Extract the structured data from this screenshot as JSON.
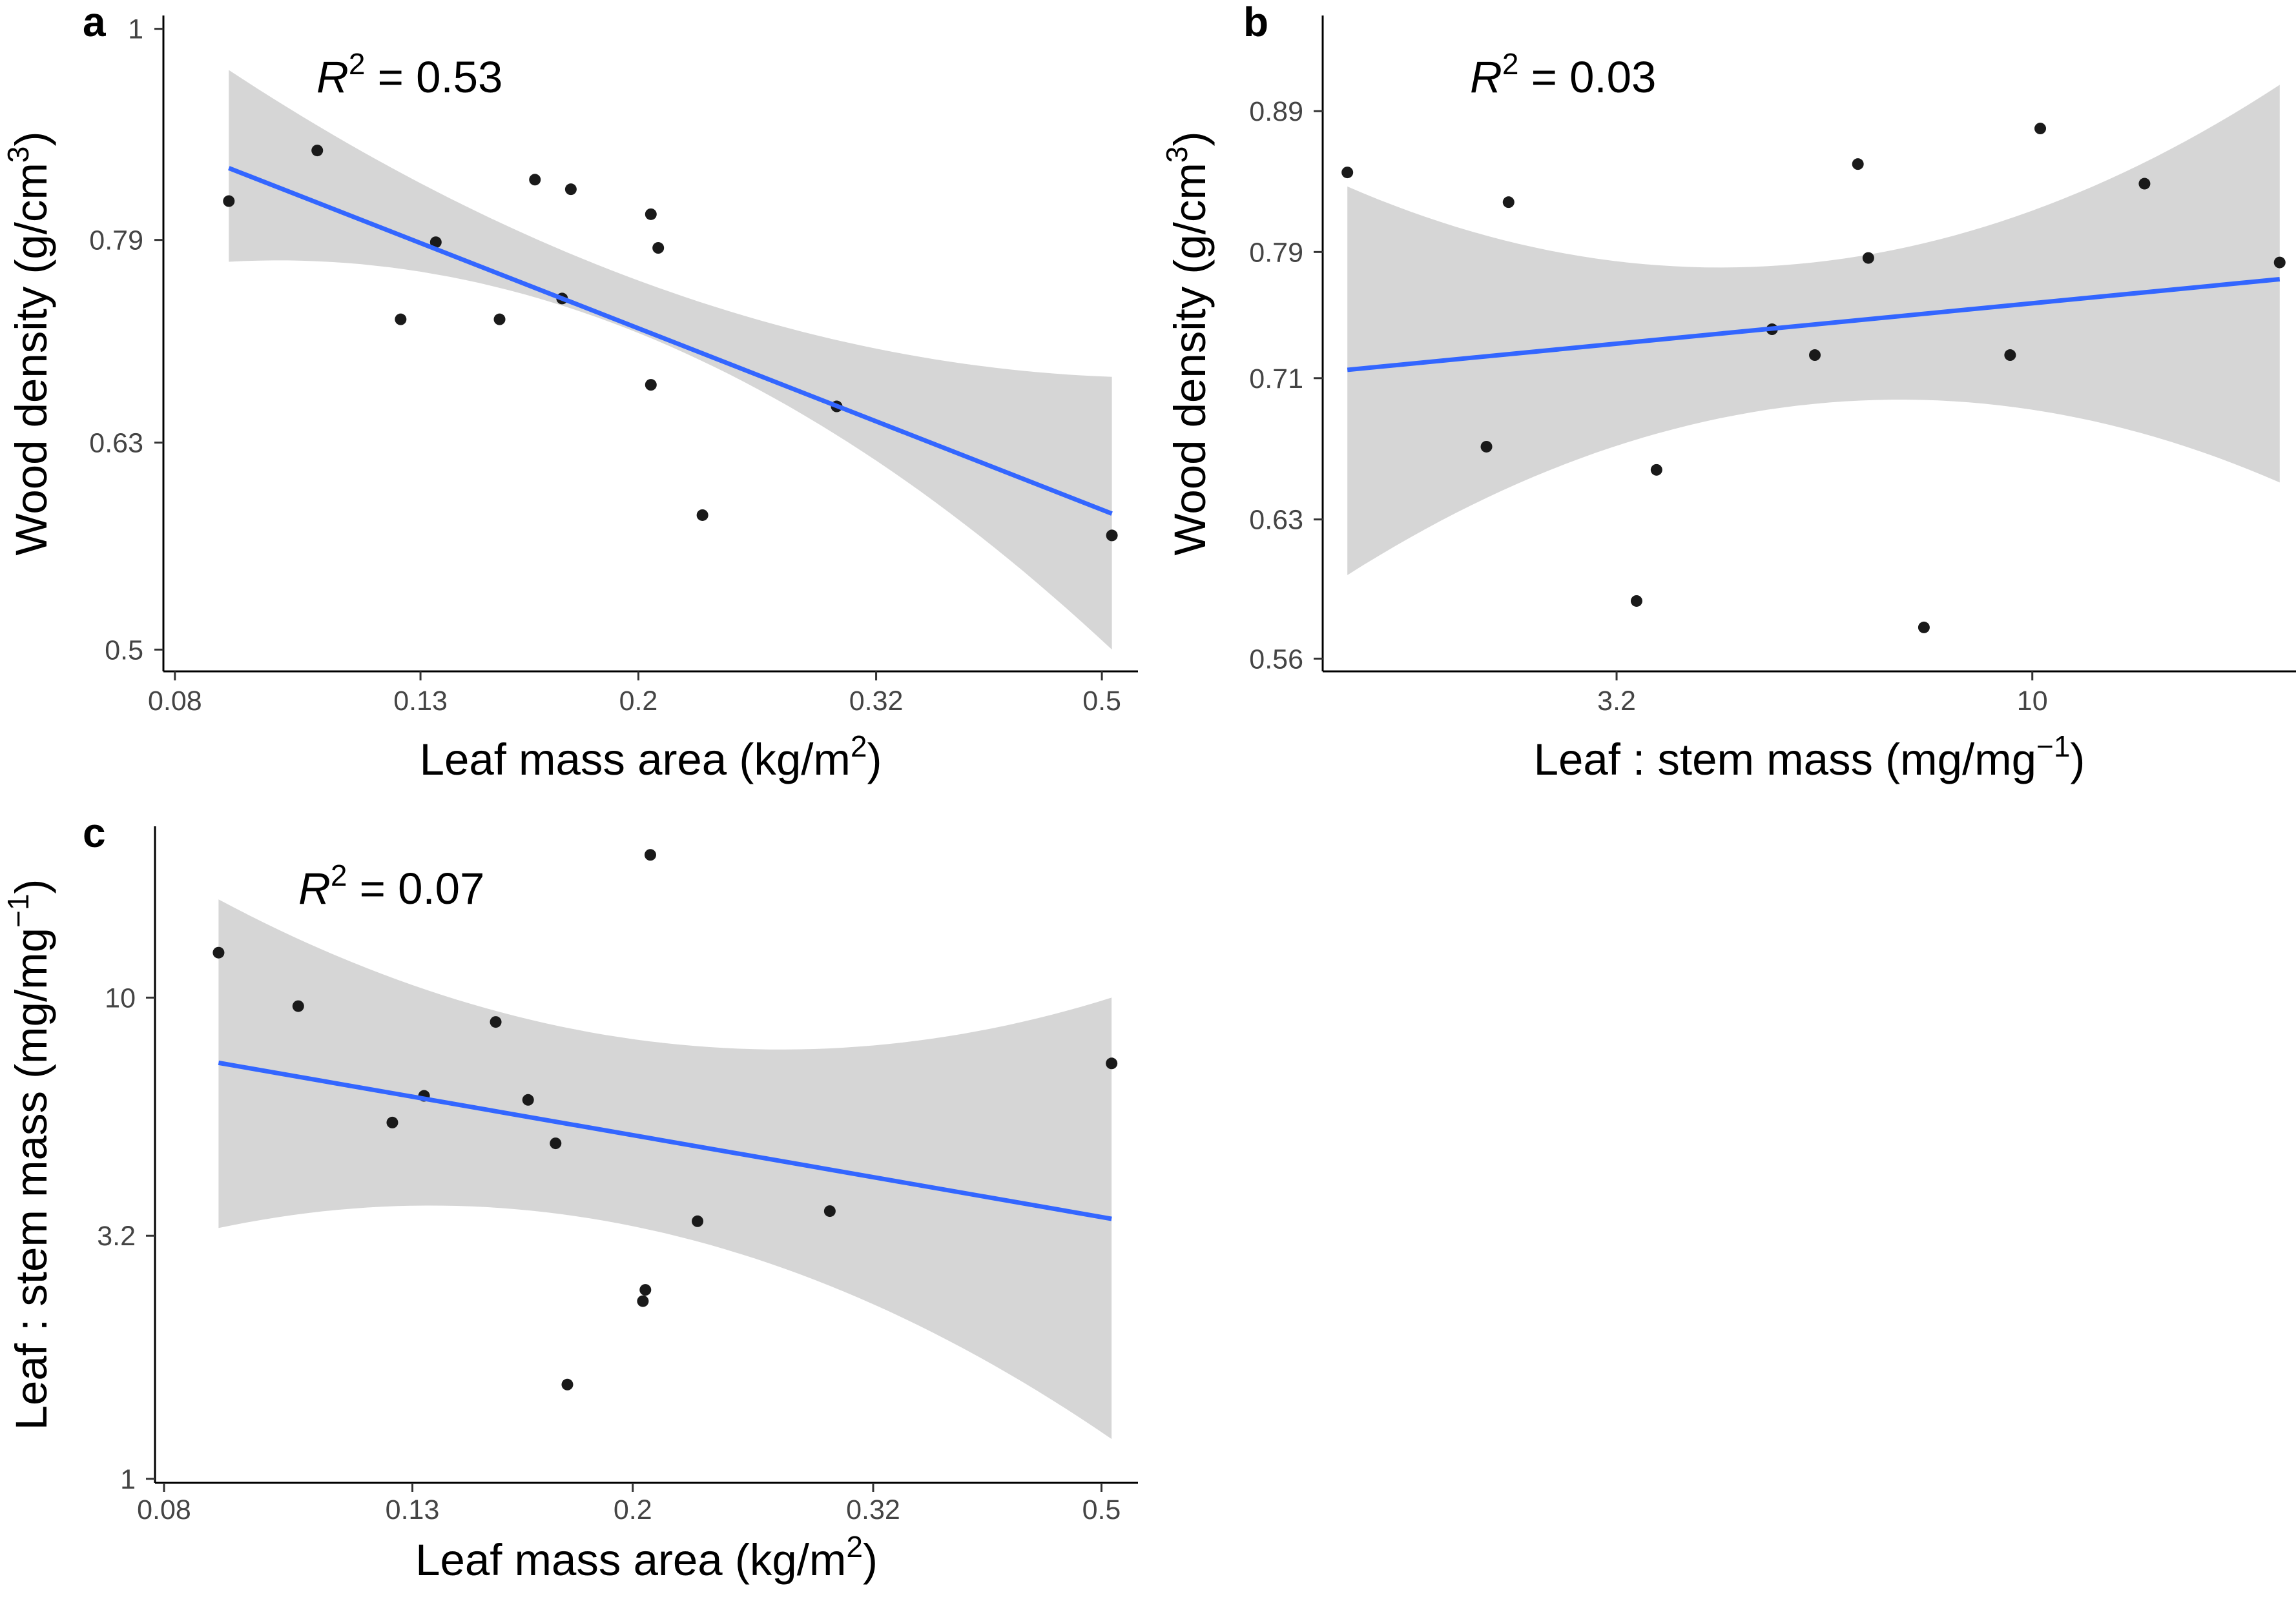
{
  "chart_data": [
    {
      "panel": "a",
      "type": "scatter",
      "x_scale": "log",
      "y_scale": "log",
      "xlabel": {
        "main": "Leaf mass area (kg/m",
        "sup": "2",
        "tail": ")"
      },
      "ylabel": {
        "main": "Wood density (g/cm",
        "sup": "3",
        "tail": ")"
      },
      "annotation": {
        "var": "R",
        "sup": "2",
        "text": " = 0.53"
      },
      "x_ticks": [
        {
          "value": 0.08,
          "label": "0.08"
        },
        {
          "value": 0.13,
          "label": "0.13"
        },
        {
          "value": 0.2,
          "label": "0.2"
        },
        {
          "value": 0.32,
          "label": "0.32"
        },
        {
          "value": 0.5,
          "label": "0.5"
        }
      ],
      "y_ticks": [
        {
          "value": 0.5,
          "label": "0.5"
        },
        {
          "value": 0.63,
          "label": "0.63"
        },
        {
          "value": 0.79,
          "label": "0.79"
        },
        {
          "value": 1,
          "label": "1"
        }
      ],
      "xlim": [
        0.0782,
        0.537
      ],
      "ylim": [
        0.488,
        1.015
      ],
      "points": [
        {
          "x": 0.089,
          "y": 0.825
        },
        {
          "x": 0.106,
          "y": 0.873
        },
        {
          "x": 0.125,
          "y": 0.723
        },
        {
          "x": 0.134,
          "y": 0.788
        },
        {
          "x": 0.152,
          "y": 0.723
        },
        {
          "x": 0.163,
          "y": 0.845
        },
        {
          "x": 0.172,
          "y": 0.74
        },
        {
          "x": 0.175,
          "y": 0.836
        },
        {
          "x": 0.205,
          "y": 0.813
        },
        {
          "x": 0.208,
          "y": 0.783
        },
        {
          "x": 0.205,
          "y": 0.672
        },
        {
          "x": 0.227,
          "y": 0.581
        },
        {
          "x": 0.296,
          "y": 0.656
        },
        {
          "x": 0.51,
          "y": 0.568
        }
      ],
      "fit": {
        "x": [
          0.089,
          0.51
        ],
        "y": [
          0.856,
          0.582
        ]
      },
      "ci_upper": [
        [
          0.089,
          0.955
        ],
        [
          0.2,
          0.755
        ],
        [
          0.51,
          0.678
        ]
      ],
      "ci_lower": [
        [
          0.089,
          0.771
        ],
        [
          0.2,
          0.712
        ],
        [
          0.51,
          0.5
        ]
      ],
      "colors": {
        "fit": "#3366ff",
        "band": "#d6d6d6",
        "point": "#1a1a1a"
      }
    },
    {
      "panel": "b",
      "type": "scatter",
      "x_scale": "log",
      "y_scale": "log",
      "xlabel": {
        "main": "Leaf : stem mass (mg/mg",
        "sup": "−1",
        "tail": ")"
      },
      "ylabel": {
        "main": "Wood density (g/cm",
        "sup": "3",
        "tail": ")"
      },
      "annotation": {
        "var": "R",
        "sup": "2",
        "text": " = 0.03"
      },
      "x_ticks": [
        {
          "value": 3.2,
          "label": "3.2"
        },
        {
          "value": 10,
          "label": "10"
        }
      ],
      "y_ticks": [
        {
          "value": 0.56,
          "label": "0.56"
        },
        {
          "value": 0.63,
          "label": "0.63"
        },
        {
          "value": 0.71,
          "label": "0.71"
        },
        {
          "value": 0.79,
          "label": "0.79"
        },
        {
          "value": 0.89,
          "label": "0.89"
        }
      ],
      "xlim": [
        1.43,
        20.6
      ],
      "ylim": [
        0.554,
        0.965
      ],
      "points": [
        {
          "x": 1.53,
          "y": 0.845
        },
        {
          "x": 2.24,
          "y": 0.67
        },
        {
          "x": 2.38,
          "y": 0.824
        },
        {
          "x": 3.38,
          "y": 0.588
        },
        {
          "x": 3.57,
          "y": 0.657
        },
        {
          "x": 4.9,
          "y": 0.74
        },
        {
          "x": 5.51,
          "y": 0.724
        },
        {
          "x": 6.2,
          "y": 0.851
        },
        {
          "x": 6.38,
          "y": 0.786
        },
        {
          "x": 7.43,
          "y": 0.575
        },
        {
          "x": 9.41,
          "y": 0.724
        },
        {
          "x": 10.22,
          "y": 0.877
        },
        {
          "x": 13.6,
          "y": 0.837
        },
        {
          "x": 19.7,
          "y": 0.783
        }
      ],
      "fit": {
        "x": [
          1.53,
          19.7
        ],
        "y": [
          0.715,
          0.772
        ]
      },
      "ci_upper": [
        [
          1.53,
          0.835
        ],
        [
          6.5,
          0.789
        ],
        [
          19.7,
          0.91
        ]
      ],
      "ci_lower": [
        [
          1.53,
          0.601
        ],
        [
          6.5,
          0.697
        ],
        [
          19.7,
          0.65
        ]
      ],
      "colors": {
        "fit": "#3366ff",
        "band": "#d6d6d6",
        "point": "#1a1a1a"
      }
    },
    {
      "panel": "c",
      "type": "scatter",
      "x_scale": "log",
      "y_scale": "log",
      "xlabel": {
        "main": "Leaf mass area (kg/m",
        "sup": "2",
        "tail": ")"
      },
      "ylabel": {
        "main": "Leaf : stem mass (mg/mg",
        "sup": "−1",
        "tail": ")"
      },
      "annotation": {
        "var": "R",
        "sup": "2",
        "text": " = 0.07"
      },
      "x_ticks": [
        {
          "value": 0.08,
          "label": "0.08"
        },
        {
          "value": 0.13,
          "label": "0.13"
        },
        {
          "value": 0.2,
          "label": "0.2"
        },
        {
          "value": 0.32,
          "label": "0.32"
        },
        {
          "value": 0.5,
          "label": "0.5"
        }
      ],
      "y_ticks": [
        {
          "value": 1,
          "label": "1"
        },
        {
          "value": 3.2,
          "label": "3.2"
        },
        {
          "value": 10,
          "label": "10"
        }
      ],
      "xlim": [
        0.0786,
        0.537
      ],
      "ylim": [
        0.981,
        22.7
      ],
      "points": [
        {
          "x": 0.089,
          "y": 12.4
        },
        {
          "x": 0.104,
          "y": 9.6
        },
        {
          "x": 0.125,
          "y": 5.5
        },
        {
          "x": 0.133,
          "y": 6.25
        },
        {
          "x": 0.153,
          "y": 8.9
        },
        {
          "x": 0.163,
          "y": 6.13
        },
        {
          "x": 0.172,
          "y": 4.98
        },
        {
          "x": 0.176,
          "y": 1.57
        },
        {
          "x": 0.204,
          "y": 2.34
        },
        {
          "x": 0.205,
          "y": 2.47
        },
        {
          "x": 0.207,
          "y": 19.8
        },
        {
          "x": 0.227,
          "y": 3.43
        },
        {
          "x": 0.294,
          "y": 3.6
        },
        {
          "x": 0.51,
          "y": 7.3
        }
      ],
      "fit": {
        "x": [
          0.089,
          0.51
        ],
        "y": [
          7.32,
          3.47
        ]
      },
      "ci_upper": [
        [
          0.089,
          16.0
        ],
        [
          0.2,
          8.2
        ],
        [
          0.51,
          10.0
        ]
      ],
      "ci_lower": [
        [
          0.089,
          3.32
        ],
        [
          0.2,
          3.35
        ],
        [
          0.51,
          1.21
        ]
      ],
      "colors": {
        "fit": "#3366ff",
        "band": "#d6d6d6",
        "point": "#1a1a1a"
      }
    }
  ]
}
